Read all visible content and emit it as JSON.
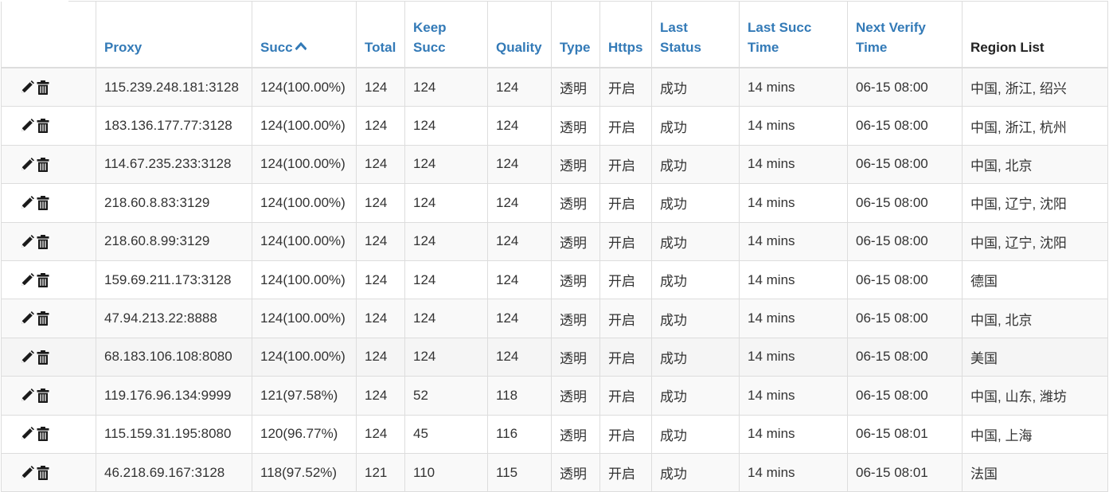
{
  "table": {
    "headers": {
      "proxy": "Proxy",
      "succ": "Succ",
      "total": "Total",
      "keep_succ_1": "Keep",
      "keep_succ_2": "Succ",
      "quality": "Quality",
      "type": "Type",
      "https": "Https",
      "last_status_1": "Last",
      "last_status_2": "Status",
      "last_succ_time_1": "Last Succ",
      "last_succ_time_2": "Time",
      "next_verify_1": "Next Verify",
      "next_verify_2": "Time",
      "region": "Region List"
    },
    "sort": {
      "column": "succ",
      "direction": "asc",
      "icon": "chevron-up-icon"
    },
    "row_actions": [
      "pencil-icon",
      "trash-icon"
    ],
    "rows": [
      {
        "proxy": "115.239.248.181:3128",
        "succ": "124(100.00%)",
        "total": "124",
        "keep_succ": "124",
        "quality": "124",
        "type": "透明",
        "https": "开启",
        "last_status": "成功",
        "last_succ_time": "14 mins",
        "next_verify": "06-15 08:00",
        "region": "中国, 浙江, 绍兴"
      },
      {
        "proxy": "183.136.177.77:3128",
        "succ": "124(100.00%)",
        "total": "124",
        "keep_succ": "124",
        "quality": "124",
        "type": "透明",
        "https": "开启",
        "last_status": "成功",
        "last_succ_time": "14 mins",
        "next_verify": "06-15 08:00",
        "region": "中国, 浙江, 杭州"
      },
      {
        "proxy": "114.67.235.233:3128",
        "succ": "124(100.00%)",
        "total": "124",
        "keep_succ": "124",
        "quality": "124",
        "type": "透明",
        "https": "开启",
        "last_status": "成功",
        "last_succ_time": "14 mins",
        "next_verify": "06-15 08:00",
        "region": "中国, 北京"
      },
      {
        "proxy": "218.60.8.83:3129",
        "succ": "124(100.00%)",
        "total": "124",
        "keep_succ": "124",
        "quality": "124",
        "type": "透明",
        "https": "开启",
        "last_status": "成功",
        "last_succ_time": "14 mins",
        "next_verify": "06-15 08:00",
        "region": "中国, 辽宁, 沈阳"
      },
      {
        "proxy": "218.60.8.99:3129",
        "succ": "124(100.00%)",
        "total": "124",
        "keep_succ": "124",
        "quality": "124",
        "type": "透明",
        "https": "开启",
        "last_status": "成功",
        "last_succ_time": "14 mins",
        "next_verify": "06-15 08:00",
        "region": "中国, 辽宁, 沈阳"
      },
      {
        "proxy": "159.69.211.173:3128",
        "succ": "124(100.00%)",
        "total": "124",
        "keep_succ": "124",
        "quality": "124",
        "type": "透明",
        "https": "开启",
        "last_status": "成功",
        "last_succ_time": "14 mins",
        "next_verify": "06-15 08:00",
        "region": "德国"
      },
      {
        "proxy": "47.94.213.22:8888",
        "succ": "124(100.00%)",
        "total": "124",
        "keep_succ": "124",
        "quality": "124",
        "type": "透明",
        "https": "开启",
        "last_status": "成功",
        "last_succ_time": "14 mins",
        "next_verify": "06-15 08:00",
        "region": "中国, 北京"
      },
      {
        "proxy": "68.183.106.108:8080",
        "succ": "124(100.00%)",
        "total": "124",
        "keep_succ": "124",
        "quality": "124",
        "type": "透明",
        "https": "开启",
        "last_status": "成功",
        "last_succ_time": "14 mins",
        "next_verify": "06-15 08:00",
        "region": "美国"
      },
      {
        "proxy": "119.176.96.134:9999",
        "succ": "121(97.58%)",
        "total": "124",
        "keep_succ": "52",
        "quality": "118",
        "type": "透明",
        "https": "开启",
        "last_status": "成功",
        "last_succ_time": "14 mins",
        "next_verify": "06-15 08:00",
        "region": "中国, 山东, 潍坊"
      },
      {
        "proxy": "115.159.31.195:8080",
        "succ": "120(96.77%)",
        "total": "124",
        "keep_succ": "45",
        "quality": "116",
        "type": "透明",
        "https": "开启",
        "last_status": "成功",
        "last_succ_time": "14 mins",
        "next_verify": "06-15 08:01",
        "region": "中国, 上海"
      },
      {
        "proxy": "46.218.69.167:3128",
        "succ": "118(97.52%)",
        "total": "121",
        "keep_succ": "110",
        "quality": "115",
        "type": "透明",
        "https": "开启",
        "last_status": "成功",
        "last_succ_time": "14 mins",
        "next_verify": "06-15 08:01",
        "region": "法国"
      }
    ],
    "hover_row_index": 7,
    "colors": {
      "link": "#337ab7",
      "border": "#dddddd",
      "stripe": "#f9f9f9",
      "hover": "#f5f5f5",
      "text": "#333333"
    }
  }
}
